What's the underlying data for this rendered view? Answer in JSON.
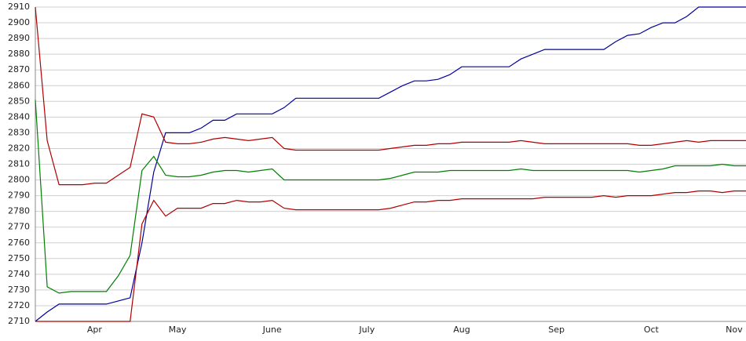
{
  "chart_data": {
    "type": "line",
    "categories": [
      null,
      null,
      null,
      null,
      null,
      "Apr",
      null,
      null,
      null,
      null,
      null,
      null,
      "May",
      null,
      null,
      null,
      null,
      null,
      null,
      null,
      "June",
      null,
      null,
      null,
      null,
      null,
      null,
      null,
      "July",
      null,
      null,
      null,
      null,
      null,
      null,
      null,
      "Aug",
      null,
      null,
      null,
      null,
      null,
      null,
      null,
      "Sep",
      null,
      null,
      null,
      null,
      null,
      null,
      null,
      "Oct",
      null,
      null,
      null,
      null,
      null,
      null,
      "Nov",
      null
    ],
    "series": [
      {
        "color": "#0000a0",
        "values": [
          2710,
          2716,
          2721,
          2721,
          2721,
          2721,
          2721,
          2723,
          2725,
          2760,
          2805,
          2830,
          2830,
          2830,
          2833,
          2838,
          2838,
          2842,
          2842,
          2842,
          2842,
          2846,
          2852,
          2852,
          2852,
          2852,
          2852,
          2852,
          2852,
          2852,
          2856,
          2860,
          2863,
          2863,
          2864,
          2867,
          2872,
          2872,
          2872,
          2872,
          2872,
          2877,
          2880,
          2883,
          2883,
          2883,
          2883,
          2883,
          2883,
          2888,
          2892,
          2893,
          2897,
          2900,
          2900,
          2904,
          2910,
          2910,
          2910,
          2910,
          2910
        ]
      },
      {
        "color": "#b00000",
        "values": [
          2910,
          2825,
          2797,
          2797,
          2797,
          2798,
          2798,
          2803,
          2808,
          2842,
          2840,
          2824,
          2823,
          2823,
          2824,
          2826,
          2827,
          2826,
          2825,
          2826,
          2827,
          2820,
          2819,
          2819,
          2819,
          2819,
          2819,
          2819,
          2819,
          2819,
          2820,
          2821,
          2822,
          2822,
          2823,
          2823,
          2824,
          2824,
          2824,
          2824,
          2824,
          2825,
          2824,
          2823,
          2823,
          2823,
          2823,
          2823,
          2823,
          2823,
          2823,
          2822,
          2822,
          2823,
          2824,
          2825,
          2824,
          2825,
          2825,
          2825,
          2825
        ]
      },
      {
        "color": "#008000",
        "values": [
          2851,
          2732,
          2728,
          2729,
          2729,
          2729,
          2729,
          2739,
          2752,
          2806,
          2815,
          2803,
          2802,
          2802,
          2803,
          2805,
          2806,
          2806,
          2805,
          2806,
          2807,
          2800,
          2800,
          2800,
          2800,
          2800,
          2800,
          2800,
          2800,
          2800,
          2801,
          2803,
          2805,
          2805,
          2805,
          2806,
          2806,
          2806,
          2806,
          2806,
          2806,
          2807,
          2806,
          2806,
          2806,
          2806,
          2806,
          2806,
          2806,
          2806,
          2806,
          2805,
          2806,
          2807,
          2809,
          2809,
          2809,
          2809,
          2810,
          2809,
          2809
        ]
      },
      {
        "color": "#b00000",
        "values": [
          2710,
          2710,
          2710,
          2710,
          2710,
          2710,
          2710,
          2710,
          2710,
          2772,
          2787,
          2777,
          2782,
          2782,
          2782,
          2785,
          2785,
          2787,
          2786,
          2786,
          2787,
          2782,
          2781,
          2781,
          2781,
          2781,
          2781,
          2781,
          2781,
          2781,
          2782,
          2784,
          2786,
          2786,
          2787,
          2787,
          2788,
          2788,
          2788,
          2788,
          2788,
          2788,
          2788,
          2789,
          2789,
          2789,
          2789,
          2789,
          2790,
          2789,
          2790,
          2790,
          2790,
          2791,
          2792,
          2792,
          2793,
          2793,
          2792,
          2793,
          2793
        ]
      }
    ],
    "ylim": [
      2710,
      2910
    ],
    "yticks": [
      2710,
      2720,
      2730,
      2740,
      2750,
      2760,
      2770,
      2780,
      2790,
      2800,
      2810,
      2820,
      2830,
      2840,
      2850,
      2860,
      2870,
      2880,
      2890,
      2900,
      2910
    ],
    "grid": true
  }
}
